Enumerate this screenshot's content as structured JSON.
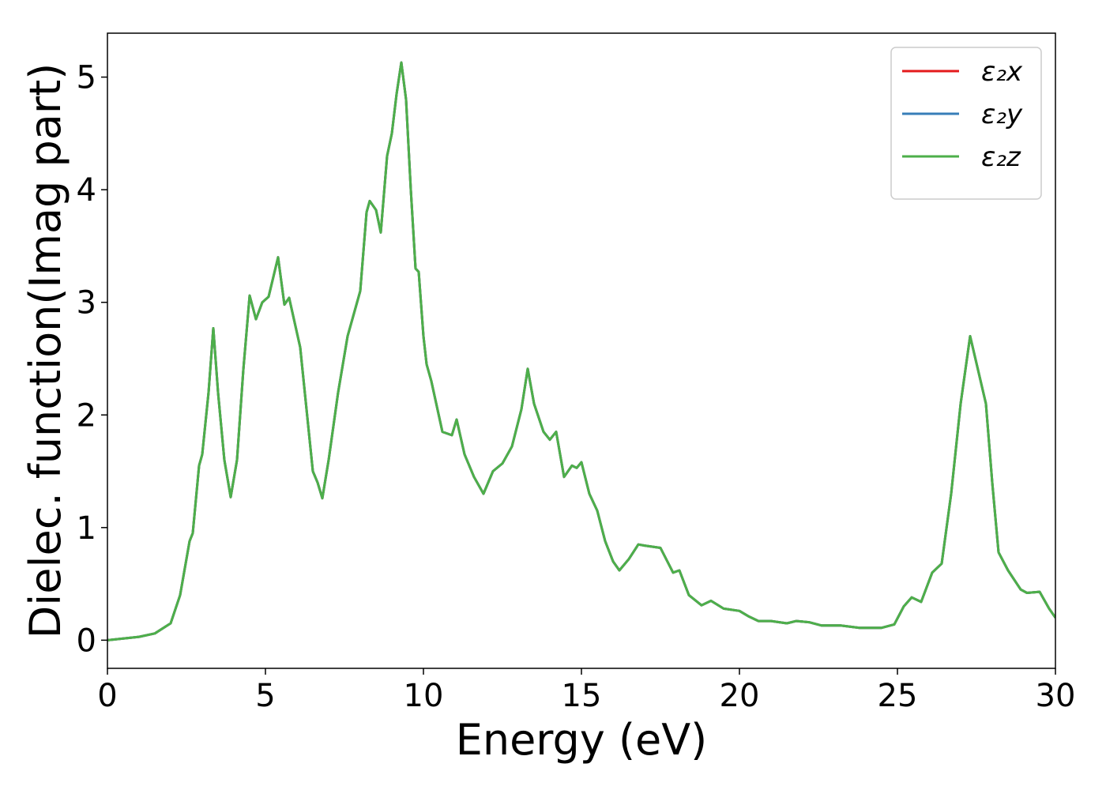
{
  "chart_data": {
    "type": "line",
    "xlabel": "Energy (eV)",
    "ylabel": "Dielec. function(Imag part)",
    "x": [
      0,
      1,
      1.5,
      2,
      2.3,
      2.6,
      2.7,
      2.9,
      3.0,
      3.2,
      3.35,
      3.5,
      3.7,
      3.9,
      4.1,
      4.3,
      4.5,
      4.7,
      4.9,
      5.1,
      5.4,
      5.6,
      5.75,
      6.1,
      6.5,
      6.65,
      6.8,
      7.0,
      7.3,
      7.6,
      7.9,
      8.0,
      8.2,
      8.3,
      8.5,
      8.65,
      8.85,
      9.0,
      9.15,
      9.3,
      9.45,
      9.6,
      9.75,
      9.85,
      10.0,
      10.1,
      10.25,
      10.6,
      10.9,
      11.05,
      11.3,
      11.6,
      11.9,
      12.2,
      12.5,
      12.8,
      13.1,
      13.3,
      13.5,
      13.8,
      14.0,
      14.2,
      14.45,
      14.7,
      14.85,
      15.0,
      15.25,
      15.5,
      15.75,
      16.0,
      16.2,
      16.5,
      16.8,
      17.0,
      17.5,
      17.9,
      18.1,
      18.4,
      18.8,
      19.1,
      19.5,
      20.0,
      20.3,
      20.6,
      21.0,
      21.5,
      21.8,
      22.2,
      22.6,
      23.2,
      23.8,
      24.5,
      24.9,
      25.2,
      25.45,
      25.75,
      26.1,
      26.4,
      26.7,
      27.0,
      27.3,
      27.55,
      27.8,
      28.0,
      28.2,
      28.5,
      28.9,
      29.1,
      29.5,
      29.8,
      30.0
    ],
    "series": [
      {
        "name": "ε₂x",
        "color": "#e41a1c",
        "values": [
          0,
          0.03,
          0.06,
          0.15,
          0.4,
          0.88,
          0.95,
          1.55,
          1.65,
          2.2,
          2.77,
          2.2,
          1.6,
          1.27,
          1.6,
          2.4,
          3.06,
          2.85,
          3.0,
          3.05,
          3.4,
          2.98,
          3.04,
          2.6,
          1.5,
          1.4,
          1.26,
          1.6,
          2.2,
          2.7,
          3.0,
          3.1,
          3.8,
          3.9,
          3.82,
          3.62,
          4.3,
          4.5,
          4.85,
          5.13,
          4.8,
          4.0,
          3.3,
          3.27,
          2.7,
          2.45,
          2.3,
          1.85,
          1.82,
          1.96,
          1.65,
          1.45,
          1.3,
          1.5,
          1.57,
          1.72,
          2.05,
          2.41,
          2.1,
          1.85,
          1.78,
          1.85,
          1.45,
          1.55,
          1.53,
          1.58,
          1.3,
          1.15,
          0.88,
          0.7,
          0.62,
          0.72,
          0.85,
          0.84,
          0.82,
          0.6,
          0.62,
          0.4,
          0.31,
          0.35,
          0.28,
          0.26,
          0.21,
          0.17,
          0.17,
          0.15,
          0.17,
          0.16,
          0.13,
          0.13,
          0.11,
          0.11,
          0.14,
          0.3,
          0.38,
          0.34,
          0.6,
          0.68,
          1.3,
          2.1,
          2.7,
          2.4,
          2.1,
          1.4,
          0.78,
          0.62,
          0.45,
          0.42,
          0.43,
          0.28,
          0.2
        ]
      },
      {
        "name": "ε₂y",
        "color": "#377eb8",
        "values": [
          0,
          0.03,
          0.06,
          0.15,
          0.4,
          0.88,
          0.95,
          1.55,
          1.65,
          2.2,
          2.77,
          2.2,
          1.6,
          1.27,
          1.6,
          2.4,
          3.06,
          2.85,
          3.0,
          3.05,
          3.4,
          2.98,
          3.04,
          2.6,
          1.5,
          1.4,
          1.26,
          1.6,
          2.2,
          2.7,
          3.0,
          3.1,
          3.8,
          3.9,
          3.82,
          3.62,
          4.3,
          4.5,
          4.85,
          5.13,
          4.8,
          4.0,
          3.3,
          3.27,
          2.7,
          2.45,
          2.3,
          1.85,
          1.82,
          1.96,
          1.65,
          1.45,
          1.3,
          1.5,
          1.57,
          1.72,
          2.05,
          2.41,
          2.1,
          1.85,
          1.78,
          1.85,
          1.45,
          1.55,
          1.53,
          1.58,
          1.3,
          1.15,
          0.88,
          0.7,
          0.62,
          0.72,
          0.85,
          0.84,
          0.82,
          0.6,
          0.62,
          0.4,
          0.31,
          0.35,
          0.28,
          0.26,
          0.21,
          0.17,
          0.17,
          0.15,
          0.17,
          0.16,
          0.13,
          0.13,
          0.11,
          0.11,
          0.14,
          0.3,
          0.38,
          0.34,
          0.6,
          0.68,
          1.3,
          2.1,
          2.7,
          2.4,
          2.1,
          1.4,
          0.78,
          0.62,
          0.45,
          0.42,
          0.43,
          0.28,
          0.2
        ]
      },
      {
        "name": "ε₂z",
        "color": "#4daf4a",
        "values": [
          0,
          0.03,
          0.06,
          0.15,
          0.4,
          0.88,
          0.95,
          1.55,
          1.65,
          2.2,
          2.77,
          2.2,
          1.6,
          1.27,
          1.6,
          2.4,
          3.06,
          2.85,
          3.0,
          3.05,
          3.4,
          2.98,
          3.04,
          2.6,
          1.5,
          1.4,
          1.26,
          1.6,
          2.2,
          2.7,
          3.0,
          3.1,
          3.8,
          3.9,
          3.82,
          3.62,
          4.3,
          4.5,
          4.85,
          5.13,
          4.8,
          4.0,
          3.3,
          3.27,
          2.7,
          2.45,
          2.3,
          1.85,
          1.82,
          1.96,
          1.65,
          1.45,
          1.3,
          1.5,
          1.57,
          1.72,
          2.05,
          2.41,
          2.1,
          1.85,
          1.78,
          1.85,
          1.45,
          1.55,
          1.53,
          1.58,
          1.3,
          1.15,
          0.88,
          0.7,
          0.62,
          0.72,
          0.85,
          0.84,
          0.82,
          0.6,
          0.62,
          0.4,
          0.31,
          0.35,
          0.28,
          0.26,
          0.21,
          0.17,
          0.17,
          0.15,
          0.17,
          0.16,
          0.13,
          0.13,
          0.11,
          0.11,
          0.14,
          0.3,
          0.38,
          0.34,
          0.6,
          0.68,
          1.3,
          2.1,
          2.7,
          2.4,
          2.1,
          1.4,
          0.78,
          0.62,
          0.45,
          0.42,
          0.43,
          0.28,
          0.2
        ]
      }
    ],
    "xlim": [
      0,
      30
    ],
    "xticks": [
      0,
      5,
      10,
      15,
      20,
      25,
      30
    ],
    "ylim": [
      -0.25,
      5.39
    ],
    "yticks": [
      0,
      1,
      2,
      3,
      4,
      5
    ],
    "grid": false,
    "legend": "upper right"
  }
}
